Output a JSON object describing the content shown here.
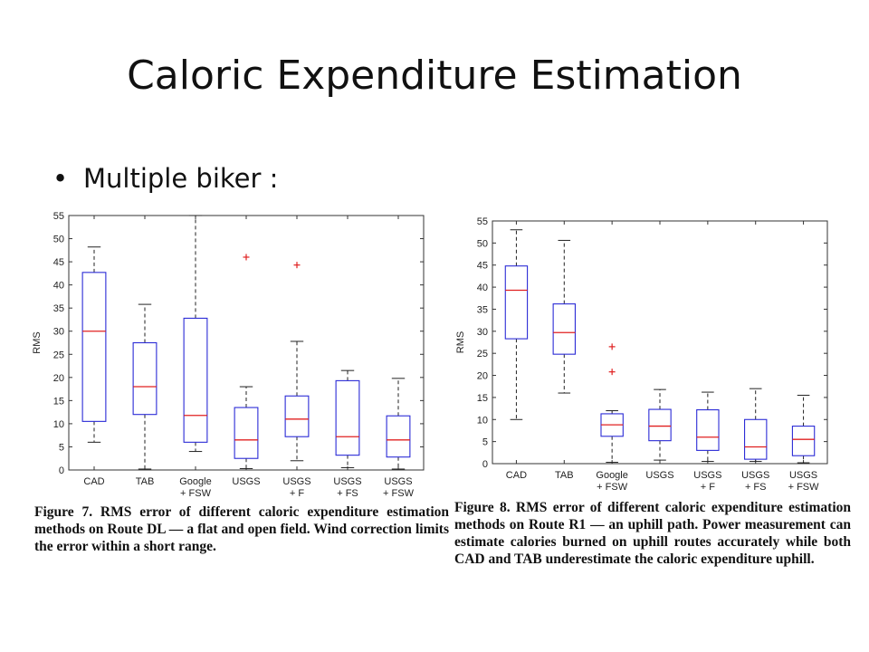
{
  "slide": {
    "title": "Caloric Expenditure Estimation",
    "bullet": "Multiple biker :"
  },
  "captions": {
    "fig7": "Figure 7. RMS error of different caloric expenditure estimation methods on Route DL — a flat and open field. Wind correction limits the error within a short range.",
    "fig8": "Figure 8. RMS error of different caloric expenditure estimation methods on Route R1 — an uphill path. Power measurement can estimate calories burned on uphill routes accurately while both CAD and TAB underestimate the caloric expenditure uphill."
  },
  "colors": {
    "box": "#2b2bd6",
    "median": "#e02020",
    "outlier": "#e02020",
    "whisker": "#222222"
  },
  "chart_data": [
    {
      "type": "box",
      "ylabel": "RMS",
      "ylim": [
        0,
        55
      ],
      "yticks": [
        0,
        5,
        10,
        15,
        20,
        25,
        30,
        35,
        40,
        45,
        50,
        55
      ],
      "categories": [
        [
          "CAD"
        ],
        [
          "TAB"
        ],
        [
          "Google",
          "+ FSW"
        ],
        [
          "USGS"
        ],
        [
          "USGS",
          "+ F"
        ],
        [
          "USGS",
          "+ FS"
        ],
        [
          "USGS",
          "+ FSW"
        ]
      ],
      "boxes": [
        {
          "whislo": 6,
          "q1": 10.5,
          "med": 30,
          "q3": 42.7,
          "whishi": 48.2,
          "outliers": []
        },
        {
          "whislo": 0.2,
          "q1": 12,
          "med": 18,
          "q3": 27.5,
          "whishi": 35.8,
          "outliers": []
        },
        {
          "whislo": 4,
          "q1": 6,
          "med": 11.8,
          "q3": 32.8,
          "whishi": 55,
          "outliers": []
        },
        {
          "whislo": 0.3,
          "q1": 2.5,
          "med": 6.5,
          "q3": 13.5,
          "whishi": 18,
          "outliers": [
            46
          ]
        },
        {
          "whislo": 2,
          "q1": 7.2,
          "med": 11,
          "q3": 16,
          "whishi": 27.8,
          "outliers": [
            44.3
          ]
        },
        {
          "whislo": 0.5,
          "q1": 3.2,
          "med": 7.2,
          "q3": 19.3,
          "whishi": 21.5,
          "outliers": []
        },
        {
          "whislo": 0.2,
          "q1": 2.8,
          "med": 6.5,
          "q3": 11.7,
          "whishi": 19.8,
          "outliers": []
        }
      ]
    },
    {
      "type": "box",
      "ylabel": "RMS",
      "ylim": [
        0,
        55
      ],
      "yticks": [
        0,
        5,
        10,
        15,
        20,
        25,
        30,
        35,
        40,
        45,
        50,
        55
      ],
      "categories": [
        [
          "CAD"
        ],
        [
          "TAB"
        ],
        [
          "Google",
          "+ FSW"
        ],
        [
          "USGS"
        ],
        [
          "USGS",
          "+ F"
        ],
        [
          "USGS",
          "+ FS"
        ],
        [
          "USGS",
          "+ FSW"
        ]
      ],
      "boxes": [
        {
          "whislo": 10,
          "q1": 28.3,
          "med": 39.3,
          "q3": 44.8,
          "whishi": 53,
          "outliers": []
        },
        {
          "whislo": 16,
          "q1": 24.8,
          "med": 29.7,
          "q3": 36.2,
          "whishi": 50.6,
          "outliers": []
        },
        {
          "whislo": 0.3,
          "q1": 6.2,
          "med": 8.8,
          "q3": 11.3,
          "whishi": 12,
          "outliers": [
            26.5,
            20.8
          ]
        },
        {
          "whislo": 0.8,
          "q1": 5.2,
          "med": 8.5,
          "q3": 12.3,
          "whishi": 16.8,
          "outliers": []
        },
        {
          "whislo": 0.5,
          "q1": 3,
          "med": 6,
          "q3": 12.2,
          "whishi": 16.2,
          "outliers": []
        },
        {
          "whislo": 0.5,
          "q1": 1,
          "med": 3.8,
          "q3": 10,
          "whishi": 17,
          "outliers": []
        },
        {
          "whislo": 0.2,
          "q1": 1.8,
          "med": 5.5,
          "q3": 8.5,
          "whishi": 15.5,
          "outliers": []
        }
      ]
    }
  ]
}
